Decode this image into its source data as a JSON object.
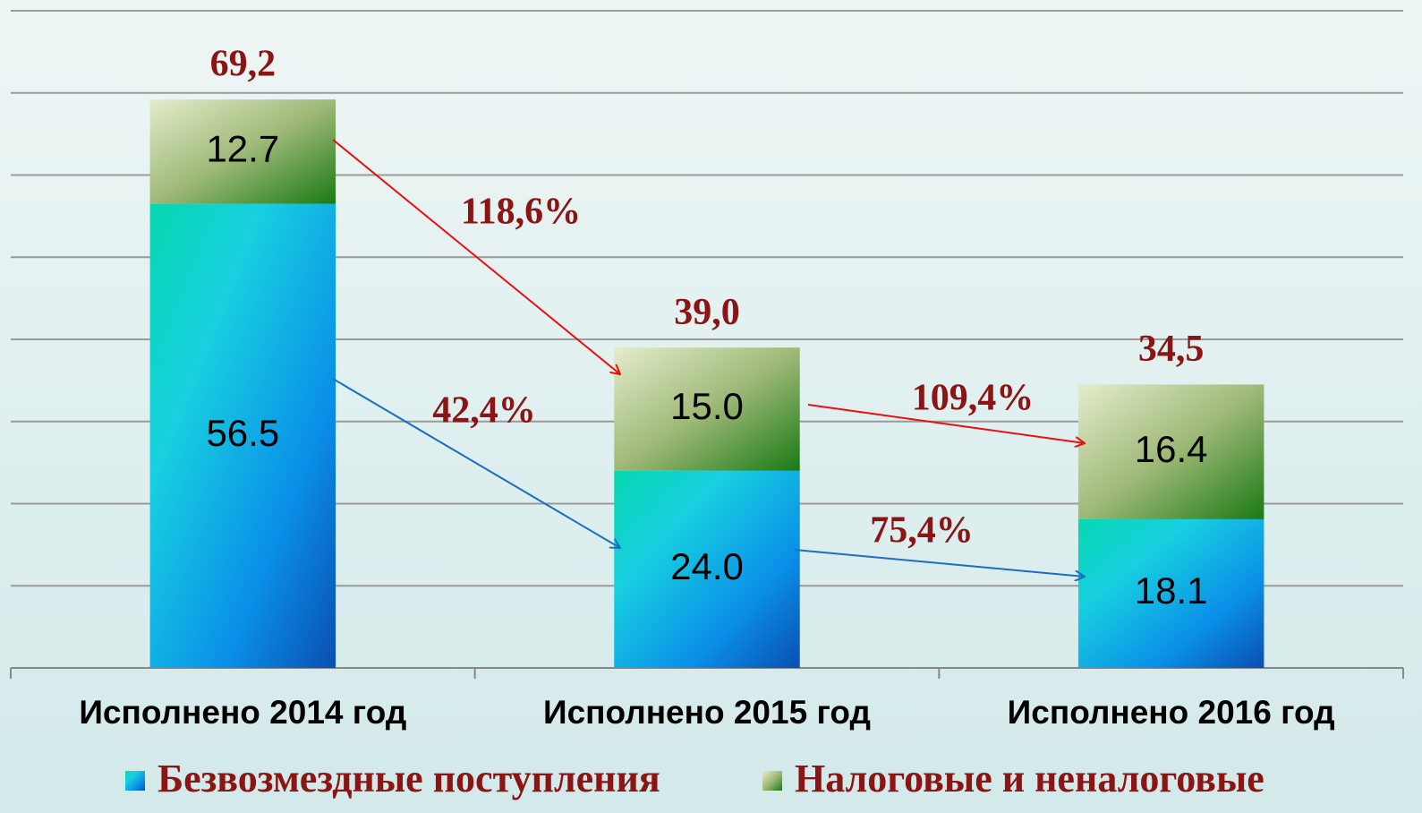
{
  "chart_data": {
    "type": "bar",
    "stacked": true,
    "categories": [
      "Исполнено 2014 год",
      "Исполнено 2015 год",
      "Исполнено 2016 год"
    ],
    "series": [
      {
        "name": "Безвозмездные поступления",
        "color": "#0a8fe0",
        "values": [
          56.5,
          24.0,
          18.1
        ],
        "value_labels": [
          "56.5",
          "24.0",
          "18.1"
        ]
      },
      {
        "name": "Налоговые и неналоговые",
        "color": "#8aab62",
        "values": [
          12.7,
          15.0,
          16.4
        ],
        "value_labels": [
          "12.7",
          "15.0",
          "16.4"
        ]
      }
    ],
    "totals": [
      69.2,
      39.0,
      34.5
    ],
    "total_labels": [
      "69,2",
      "39,0",
      "34,5"
    ],
    "annotations": [
      "118,6%",
      "42,4%",
      "109,4%",
      "75,4%"
    ],
    "ylim": [
      0,
      80
    ],
    "yticks": [
      0,
      10,
      20,
      30,
      40,
      50,
      60,
      70,
      80
    ],
    "grid": true
  }
}
